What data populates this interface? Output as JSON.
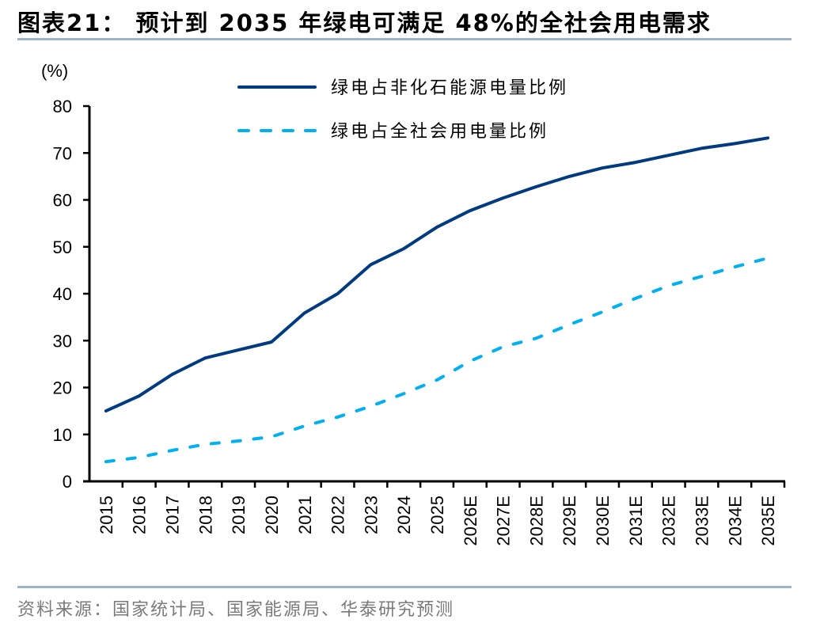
{
  "title": "图表21：  预计到 2035 年绿电可满足 48%的全社会用电需求",
  "source": "资料来源：国家统计局、国家能源局、华泰研究预测",
  "colors": {
    "series1": "#003a80",
    "series2": "#00b0f0",
    "rule": "#9db3cc",
    "axis": "#000000"
  },
  "chart_data": {
    "type": "line",
    "title": "预计到 2035 年绿电可满足 48%的全社会用电需求",
    "xlabel": "",
    "ylabel": "(%)",
    "ylim": [
      0,
      80
    ],
    "yticks": [
      0,
      10,
      20,
      30,
      40,
      50,
      60,
      70,
      80
    ],
    "grid": false,
    "legend_position": "top-center",
    "categories": [
      "2015",
      "2016",
      "2017",
      "2018",
      "2019",
      "2020",
      "2021",
      "2022",
      "2023",
      "2024",
      "2025",
      "2026E",
      "2027E",
      "2028E",
      "2029E",
      "2030E",
      "2031E",
      "2032E",
      "2033E",
      "2034E",
      "2035E"
    ],
    "series": [
      {
        "name": "绿电占非化石能源电量比例",
        "style": "solid",
        "color": "#003a80",
        "values": [
          15.0,
          18.2,
          22.8,
          26.3,
          28.0,
          29.7,
          35.9,
          40.0,
          46.2,
          49.6,
          54.2,
          57.7,
          60.4,
          62.8,
          65.0,
          66.8,
          68.0,
          69.5,
          71.0,
          72.0,
          73.2
        ]
      },
      {
        "name": "绿电占全社会用电量比例",
        "style": "dashed",
        "color": "#00b0f0",
        "values": [
          4.2,
          5.1,
          6.6,
          7.9,
          8.6,
          9.5,
          11.8,
          13.7,
          16.0,
          18.7,
          21.6,
          25.6,
          28.7,
          30.5,
          33.4,
          36.1,
          39.0,
          41.7,
          43.7,
          45.7,
          47.6
        ]
      }
    ]
  }
}
